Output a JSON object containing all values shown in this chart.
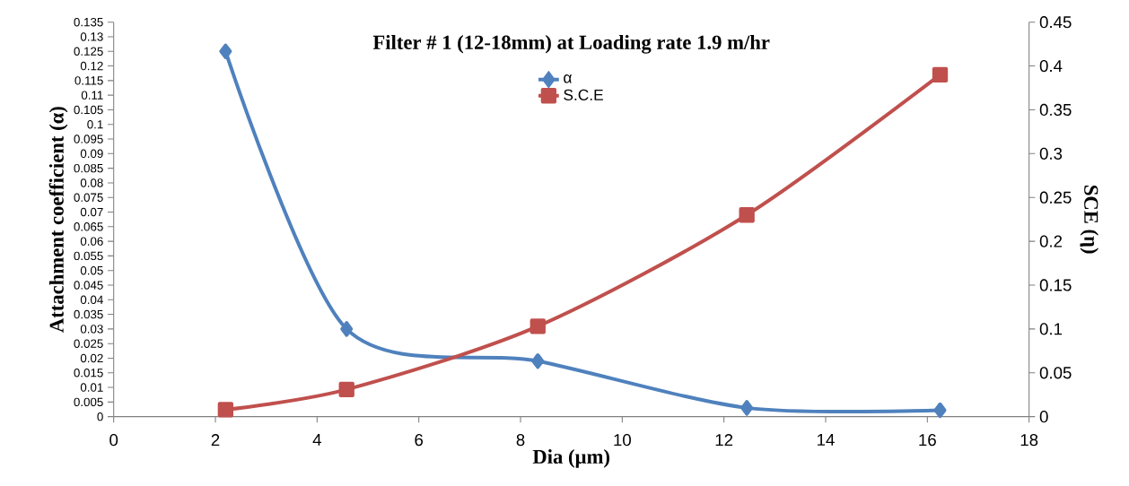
{
  "chart_data": {
    "type": "line",
    "title": "Filter # 1 (12-18mm) at Loading rate 1.9 m/hr",
    "xlabel": "Dia (µm)",
    "ylabel": "Attachment coefficient (α)",
    "y2label": "SCE (η)",
    "x": [
      2.2,
      4.58,
      8.34,
      12.45,
      16.25
    ],
    "series": [
      {
        "name": "α",
        "color": "#4f81bd",
        "marker": "diamond",
        "values": [
          0.125,
          0.03,
          0.019,
          0.003,
          0.0022
        ]
      },
      {
        "name": "S.C.E",
        "color": "#c0504d",
        "marker": "square",
        "axis": "y2",
        "values": [
          0.008,
          0.031,
          0.103,
          0.23,
          0.39
        ]
      }
    ],
    "xlim": [
      0,
      18
    ],
    "xticks": [
      0,
      2,
      4,
      6,
      8,
      10,
      12,
      14,
      16,
      18
    ],
    "ylim": [
      0,
      0.135
    ],
    "yticks": [
      0,
      0.005,
      0.01,
      0.015,
      0.02,
      0.025,
      0.03,
      0.035,
      0.04,
      0.045,
      0.05,
      0.055,
      0.06,
      0.065,
      0.07,
      0.075,
      0.08,
      0.085,
      0.09,
      0.095,
      0.1,
      0.105,
      0.11,
      0.115,
      0.12,
      0.125,
      0.13,
      0.135
    ],
    "y2lim": [
      0,
      0.45
    ],
    "y2ticks": [
      0,
      0.05,
      0.1,
      0.15,
      0.2,
      0.25,
      0.3,
      0.35,
      0.4,
      0.45
    ],
    "grid": false,
    "legend": "top",
    "line_style": "solid"
  }
}
